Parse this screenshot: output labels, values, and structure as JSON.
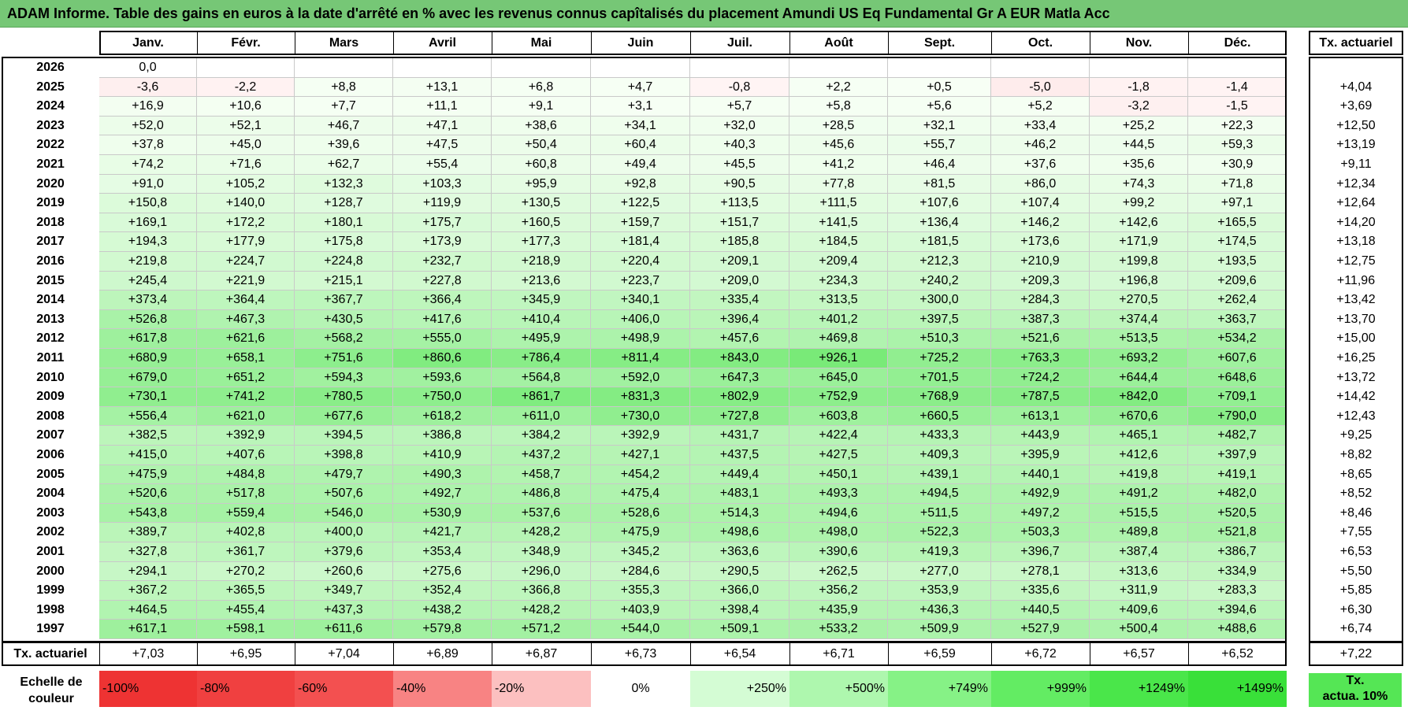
{
  "title": "ADAM Informe. Table des gains en euros à la date d'arrêté en % avec les revenus connus capîtalisés du placement Amundi US Eq Fundamental Gr A EUR Matla Acc",
  "chart_data": {
    "type": "table",
    "months": [
      "Janv.",
      "Févr.",
      "Mars",
      "Avril",
      "Mai",
      "Juin",
      "Juil.",
      "Août",
      "Sept.",
      "Oct.",
      "Nov.",
      "Déc."
    ],
    "right_header": "Tx. actuariel",
    "rows": [
      {
        "year": "2026",
        "values": [
          "0,0",
          "",
          "",
          "",
          "",
          "",
          "",
          "",
          "",
          "",
          "",
          ""
        ],
        "rate": ""
      },
      {
        "year": "2025",
        "values": [
          "-3,6",
          "-2,2",
          "+8,8",
          "+13,1",
          "+6,8",
          "+4,7",
          "-0,8",
          "+2,2",
          "+0,5",
          "-5,0",
          "-1,8",
          "-1,4"
        ],
        "rate": "+4,04"
      },
      {
        "year": "2024",
        "values": [
          "+16,9",
          "+10,6",
          "+7,7",
          "+11,1",
          "+9,1",
          "+3,1",
          "+5,7",
          "+5,8",
          "+5,6",
          "+5,2",
          "-3,2",
          "-1,5"
        ],
        "rate": "+3,69"
      },
      {
        "year": "2023",
        "values": [
          "+52,0",
          "+52,1",
          "+46,7",
          "+47,1",
          "+38,6",
          "+34,1",
          "+32,0",
          "+28,5",
          "+32,1",
          "+33,4",
          "+25,2",
          "+22,3"
        ],
        "rate": "+12,50"
      },
      {
        "year": "2022",
        "values": [
          "+37,8",
          "+45,0",
          "+39,6",
          "+47,5",
          "+50,4",
          "+60,4",
          "+40,3",
          "+45,6",
          "+55,7",
          "+46,2",
          "+44,5",
          "+59,3"
        ],
        "rate": "+13,19"
      },
      {
        "year": "2021",
        "values": [
          "+74,2",
          "+71,6",
          "+62,7",
          "+55,4",
          "+60,8",
          "+49,4",
          "+45,5",
          "+41,2",
          "+46,4",
          "+37,6",
          "+35,6",
          "+30,9"
        ],
        "rate": "+9,11"
      },
      {
        "year": "2020",
        "values": [
          "+91,0",
          "+105,2",
          "+132,3",
          "+103,3",
          "+95,9",
          "+92,8",
          "+90,5",
          "+77,8",
          "+81,5",
          "+86,0",
          "+74,3",
          "+71,8"
        ],
        "rate": "+12,34"
      },
      {
        "year": "2019",
        "values": [
          "+150,8",
          "+140,0",
          "+128,7",
          "+119,9",
          "+130,5",
          "+122,5",
          "+113,5",
          "+111,5",
          "+107,6",
          "+107,4",
          "+99,2",
          "+97,1"
        ],
        "rate": "+12,64"
      },
      {
        "year": "2018",
        "values": [
          "+169,1",
          "+172,2",
          "+180,1",
          "+175,7",
          "+160,5",
          "+159,7",
          "+151,7",
          "+141,5",
          "+136,4",
          "+146,2",
          "+142,6",
          "+165,5"
        ],
        "rate": "+14,20"
      },
      {
        "year": "2017",
        "values": [
          "+194,3",
          "+177,9",
          "+175,8",
          "+173,9",
          "+177,3",
          "+181,4",
          "+185,8",
          "+184,5",
          "+181,5",
          "+173,6",
          "+171,9",
          "+174,5"
        ],
        "rate": "+13,18"
      },
      {
        "year": "2016",
        "values": [
          "+219,8",
          "+224,7",
          "+224,8",
          "+232,7",
          "+218,9",
          "+220,4",
          "+209,1",
          "+209,4",
          "+212,3",
          "+210,9",
          "+199,8",
          "+193,5"
        ],
        "rate": "+12,75"
      },
      {
        "year": "2015",
        "values": [
          "+245,4",
          "+221,9",
          "+215,1",
          "+227,8",
          "+213,6",
          "+223,7",
          "+209,0",
          "+234,3",
          "+240,2",
          "+209,3",
          "+196,8",
          "+209,6"
        ],
        "rate": "+11,96"
      },
      {
        "year": "2014",
        "values": [
          "+373,4",
          "+364,4",
          "+367,7",
          "+366,4",
          "+345,9",
          "+340,1",
          "+335,4",
          "+313,5",
          "+300,0",
          "+284,3",
          "+270,5",
          "+262,4"
        ],
        "rate": "+13,42"
      },
      {
        "year": "2013",
        "values": [
          "+526,8",
          "+467,3",
          "+430,5",
          "+417,6",
          "+410,4",
          "+406,0",
          "+396,4",
          "+401,2",
          "+397,5",
          "+387,3",
          "+374,4",
          "+363,7"
        ],
        "rate": "+13,70"
      },
      {
        "year": "2012",
        "values": [
          "+617,8",
          "+621,6",
          "+568,2",
          "+555,0",
          "+495,9",
          "+498,9",
          "+457,6",
          "+469,8",
          "+510,3",
          "+521,6",
          "+513,5",
          "+534,2"
        ],
        "rate": "+15,00"
      },
      {
        "year": "2011",
        "values": [
          "+680,9",
          "+658,1",
          "+751,6",
          "+860,6",
          "+786,4",
          "+811,4",
          "+843,0",
          "+926,1",
          "+725,2",
          "+763,3",
          "+693,2",
          "+607,6"
        ],
        "rate": "+16,25"
      },
      {
        "year": "2010",
        "values": [
          "+679,0",
          "+651,2",
          "+594,3",
          "+593,6",
          "+564,8",
          "+592,0",
          "+647,3",
          "+645,0",
          "+701,5",
          "+724,2",
          "+644,4",
          "+648,6"
        ],
        "rate": "+13,72"
      },
      {
        "year": "2009",
        "values": [
          "+730,1",
          "+741,2",
          "+780,5",
          "+750,0",
          "+861,7",
          "+831,3",
          "+802,9",
          "+752,9",
          "+768,9",
          "+787,5",
          "+842,0",
          "+709,1"
        ],
        "rate": "+14,42"
      },
      {
        "year": "2008",
        "values": [
          "+556,4",
          "+621,0",
          "+677,6",
          "+618,2",
          "+611,0",
          "+730,0",
          "+727,8",
          "+603,8",
          "+660,5",
          "+613,1",
          "+670,6",
          "+790,0"
        ],
        "rate": "+12,43"
      },
      {
        "year": "2007",
        "values": [
          "+382,5",
          "+392,9",
          "+394,5",
          "+386,8",
          "+384,2",
          "+392,9",
          "+431,7",
          "+422,4",
          "+433,3",
          "+443,9",
          "+465,1",
          "+482,7"
        ],
        "rate": "+9,25"
      },
      {
        "year": "2006",
        "values": [
          "+415,0",
          "+407,6",
          "+398,8",
          "+410,9",
          "+437,2",
          "+427,1",
          "+437,5",
          "+427,5",
          "+409,3",
          "+395,9",
          "+412,6",
          "+397,9"
        ],
        "rate": "+8,82"
      },
      {
        "year": "2005",
        "values": [
          "+475,9",
          "+484,8",
          "+479,7",
          "+490,3",
          "+458,7",
          "+454,2",
          "+449,4",
          "+450,1",
          "+439,1",
          "+440,1",
          "+419,8",
          "+419,1"
        ],
        "rate": "+8,65"
      },
      {
        "year": "2004",
        "values": [
          "+520,6",
          "+517,8",
          "+507,6",
          "+492,7",
          "+486,8",
          "+475,4",
          "+483,1",
          "+493,3",
          "+494,5",
          "+492,9",
          "+491,2",
          "+482,0"
        ],
        "rate": "+8,52"
      },
      {
        "year": "2003",
        "values": [
          "+543,8",
          "+559,4",
          "+546,0",
          "+530,9",
          "+537,6",
          "+528,6",
          "+514,3",
          "+494,6",
          "+511,5",
          "+497,2",
          "+515,5",
          "+520,5"
        ],
        "rate": "+8,46"
      },
      {
        "year": "2002",
        "values": [
          "+389,7",
          "+402,8",
          "+400,0",
          "+421,7",
          "+428,2",
          "+475,9",
          "+498,6",
          "+498,0",
          "+522,3",
          "+503,3",
          "+489,8",
          "+521,8"
        ],
        "rate": "+7,55"
      },
      {
        "year": "2001",
        "values": [
          "+327,8",
          "+361,7",
          "+379,6",
          "+353,4",
          "+348,9",
          "+345,2",
          "+363,6",
          "+390,6",
          "+419,3",
          "+396,7",
          "+387,4",
          "+386,7"
        ],
        "rate": "+6,53"
      },
      {
        "year": "2000",
        "values": [
          "+294,1",
          "+270,2",
          "+260,6",
          "+275,6",
          "+296,0",
          "+284,6",
          "+290,5",
          "+262,5",
          "+277,0",
          "+278,1",
          "+313,6",
          "+334,9"
        ],
        "rate": "+5,50"
      },
      {
        "year": "1999",
        "values": [
          "+367,2",
          "+365,5",
          "+349,7",
          "+352,4",
          "+366,8",
          "+355,3",
          "+366,0",
          "+356,2",
          "+353,9",
          "+335,6",
          "+311,9",
          "+283,3"
        ],
        "rate": "+5,85"
      },
      {
        "year": "1998",
        "values": [
          "+464,5",
          "+455,4",
          "+437,3",
          "+438,2",
          "+428,2",
          "+403,9",
          "+398,4",
          "+435,9",
          "+436,3",
          "+440,5",
          "+409,6",
          "+394,6"
        ],
        "rate": "+6,30"
      },
      {
        "year": "1997",
        "values": [
          "+617,1",
          "+598,1",
          "+611,6",
          "+579,8",
          "+571,2",
          "+544,0",
          "+509,1",
          "+533,2",
          "+509,9",
          "+527,9",
          "+500,4",
          "+488,6"
        ],
        "rate": "+6,74"
      }
    ],
    "footer": {
      "label": "Tx. actuariel",
      "values": [
        "+7,03",
        "+6,95",
        "+7,04",
        "+6,89",
        "+6,87",
        "+6,73",
        "+6,54",
        "+6,71",
        "+6,59",
        "+6,72",
        "+6,57",
        "+6,52"
      ],
      "rate": "+7,22"
    },
    "legend": {
      "label": "Echelle de couleur",
      "items": [
        {
          "text": "-100%",
          "color": "#ee3333",
          "align": "left"
        },
        {
          "text": "-80%",
          "color": "#f04040",
          "align": "left"
        },
        {
          "text": "-60%",
          "color": "#f35050",
          "align": "left"
        },
        {
          "text": "-40%",
          "color": "#f88383",
          "align": "left"
        },
        {
          "text": "-20%",
          "color": "#fcc0c0",
          "align": "left"
        },
        {
          "text": "0%",
          "color": "#ffffff",
          "align": "center"
        },
        {
          "text": "+250%",
          "color": "#d4fcd4",
          "align": "right"
        },
        {
          "text": "+500%",
          "color": "#aef7ae",
          "align": "right"
        },
        {
          "text": "+749%",
          "color": "#86f286",
          "align": "right"
        },
        {
          "text": "+999%",
          "color": "#63ec63",
          "align": "right"
        },
        {
          "text": "+1249%",
          "color": "#4ae64a",
          "align": "right"
        },
        {
          "text": "+1499%",
          "color": "#39e039",
          "align": "right"
        }
      ],
      "tx_line1": "Tx.",
      "tx_line2": "actua. 10%"
    }
  }
}
